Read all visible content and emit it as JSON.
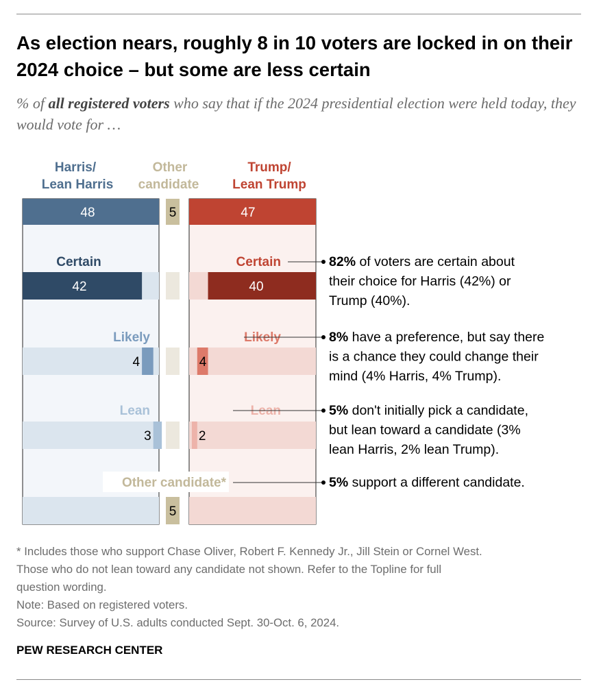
{
  "header": {
    "title": "As election nears, roughly 8 in 10 voters are locked in on their 2024 choice – but some are less certain",
    "subtitle_prefix": "% of ",
    "subtitle_bold": "all registered voters",
    "subtitle_suffix": " who say that if the 2024 presidential election were held today, they would vote for …"
  },
  "chart_data": {
    "type": "bar",
    "title": "As election nears, roughly 8 in 10 voters are locked in on their 2024 choice – but some are less certain",
    "column_headers": {
      "harris": [
        "Harris/",
        "Lean Harris"
      ],
      "other": [
        "Other",
        "candidate"
      ],
      "trump": [
        "Trump/",
        "Lean Trump"
      ]
    },
    "totals": {
      "harris": 48,
      "other": 5,
      "trump": 47
    },
    "rows": [
      {
        "label": "Certain",
        "harris": 42,
        "trump": 40
      },
      {
        "label": "Likely",
        "harris": 4,
        "trump": 4
      },
      {
        "label": "Lean",
        "harris": 3,
        "trump": 2
      },
      {
        "label": "Other candidate*",
        "other": 5
      }
    ],
    "annotations": [
      {
        "bold": "82%",
        "text": " of voters are certain about their choice for Harris (42%) or Trump (40%)."
      },
      {
        "bold": "8%",
        "text": " have a preference, but say there is a chance they could change their mind (4% Harris, 4% Trump)."
      },
      {
        "bold": "5%",
        "text": " don't initially pick a candidate, but lean toward a candidate (3% lean Harris, 2% lean Trump)."
      },
      {
        "bold": "5%",
        "text": " support a different candidate."
      }
    ],
    "colors": {
      "harris_total": "#4f6f8f",
      "harris_certain": "#2f4a66",
      "harris_likely": "#7a9bbd",
      "harris_lean": "#a9c1d8",
      "harris_bg": "#dbe5ee",
      "harris_panel": "#f3f6fa",
      "other": "#c9bf9e",
      "other_bg": "#ece8de",
      "other_text": "#c2b89a",
      "trump_total": "#bf4432",
      "trump_certain": "#8e2c1f",
      "trump_likely": "#dd7a6a",
      "trump_lean": "#edb3aa",
      "trump_bg": "#f3d9d4",
      "trump_panel": "#fbf1ef",
      "harris_label": "#2f4a66",
      "harris_likely_label": "#7a9bbd",
      "harris_lean_label": "#a9c1d8",
      "trump_label": "#bf4432",
      "trump_likely_label": "#dd7a6a",
      "trump_lean_label": "#edb3aa"
    }
  },
  "footer": {
    "notes": [
      "* Includes those who support Chase Oliver, Robert F. Kennedy Jr., Jill Stein or Cornel West.",
      "Those who do not lean toward any candidate not shown. Refer to the Topline for full",
      "question wording.",
      "Note: Based on registered voters.",
      "Source: Survey of U.S. adults conducted Sept. 30-Oct. 6, 2024."
    ],
    "brand": "PEW RESEARCH CENTER"
  }
}
